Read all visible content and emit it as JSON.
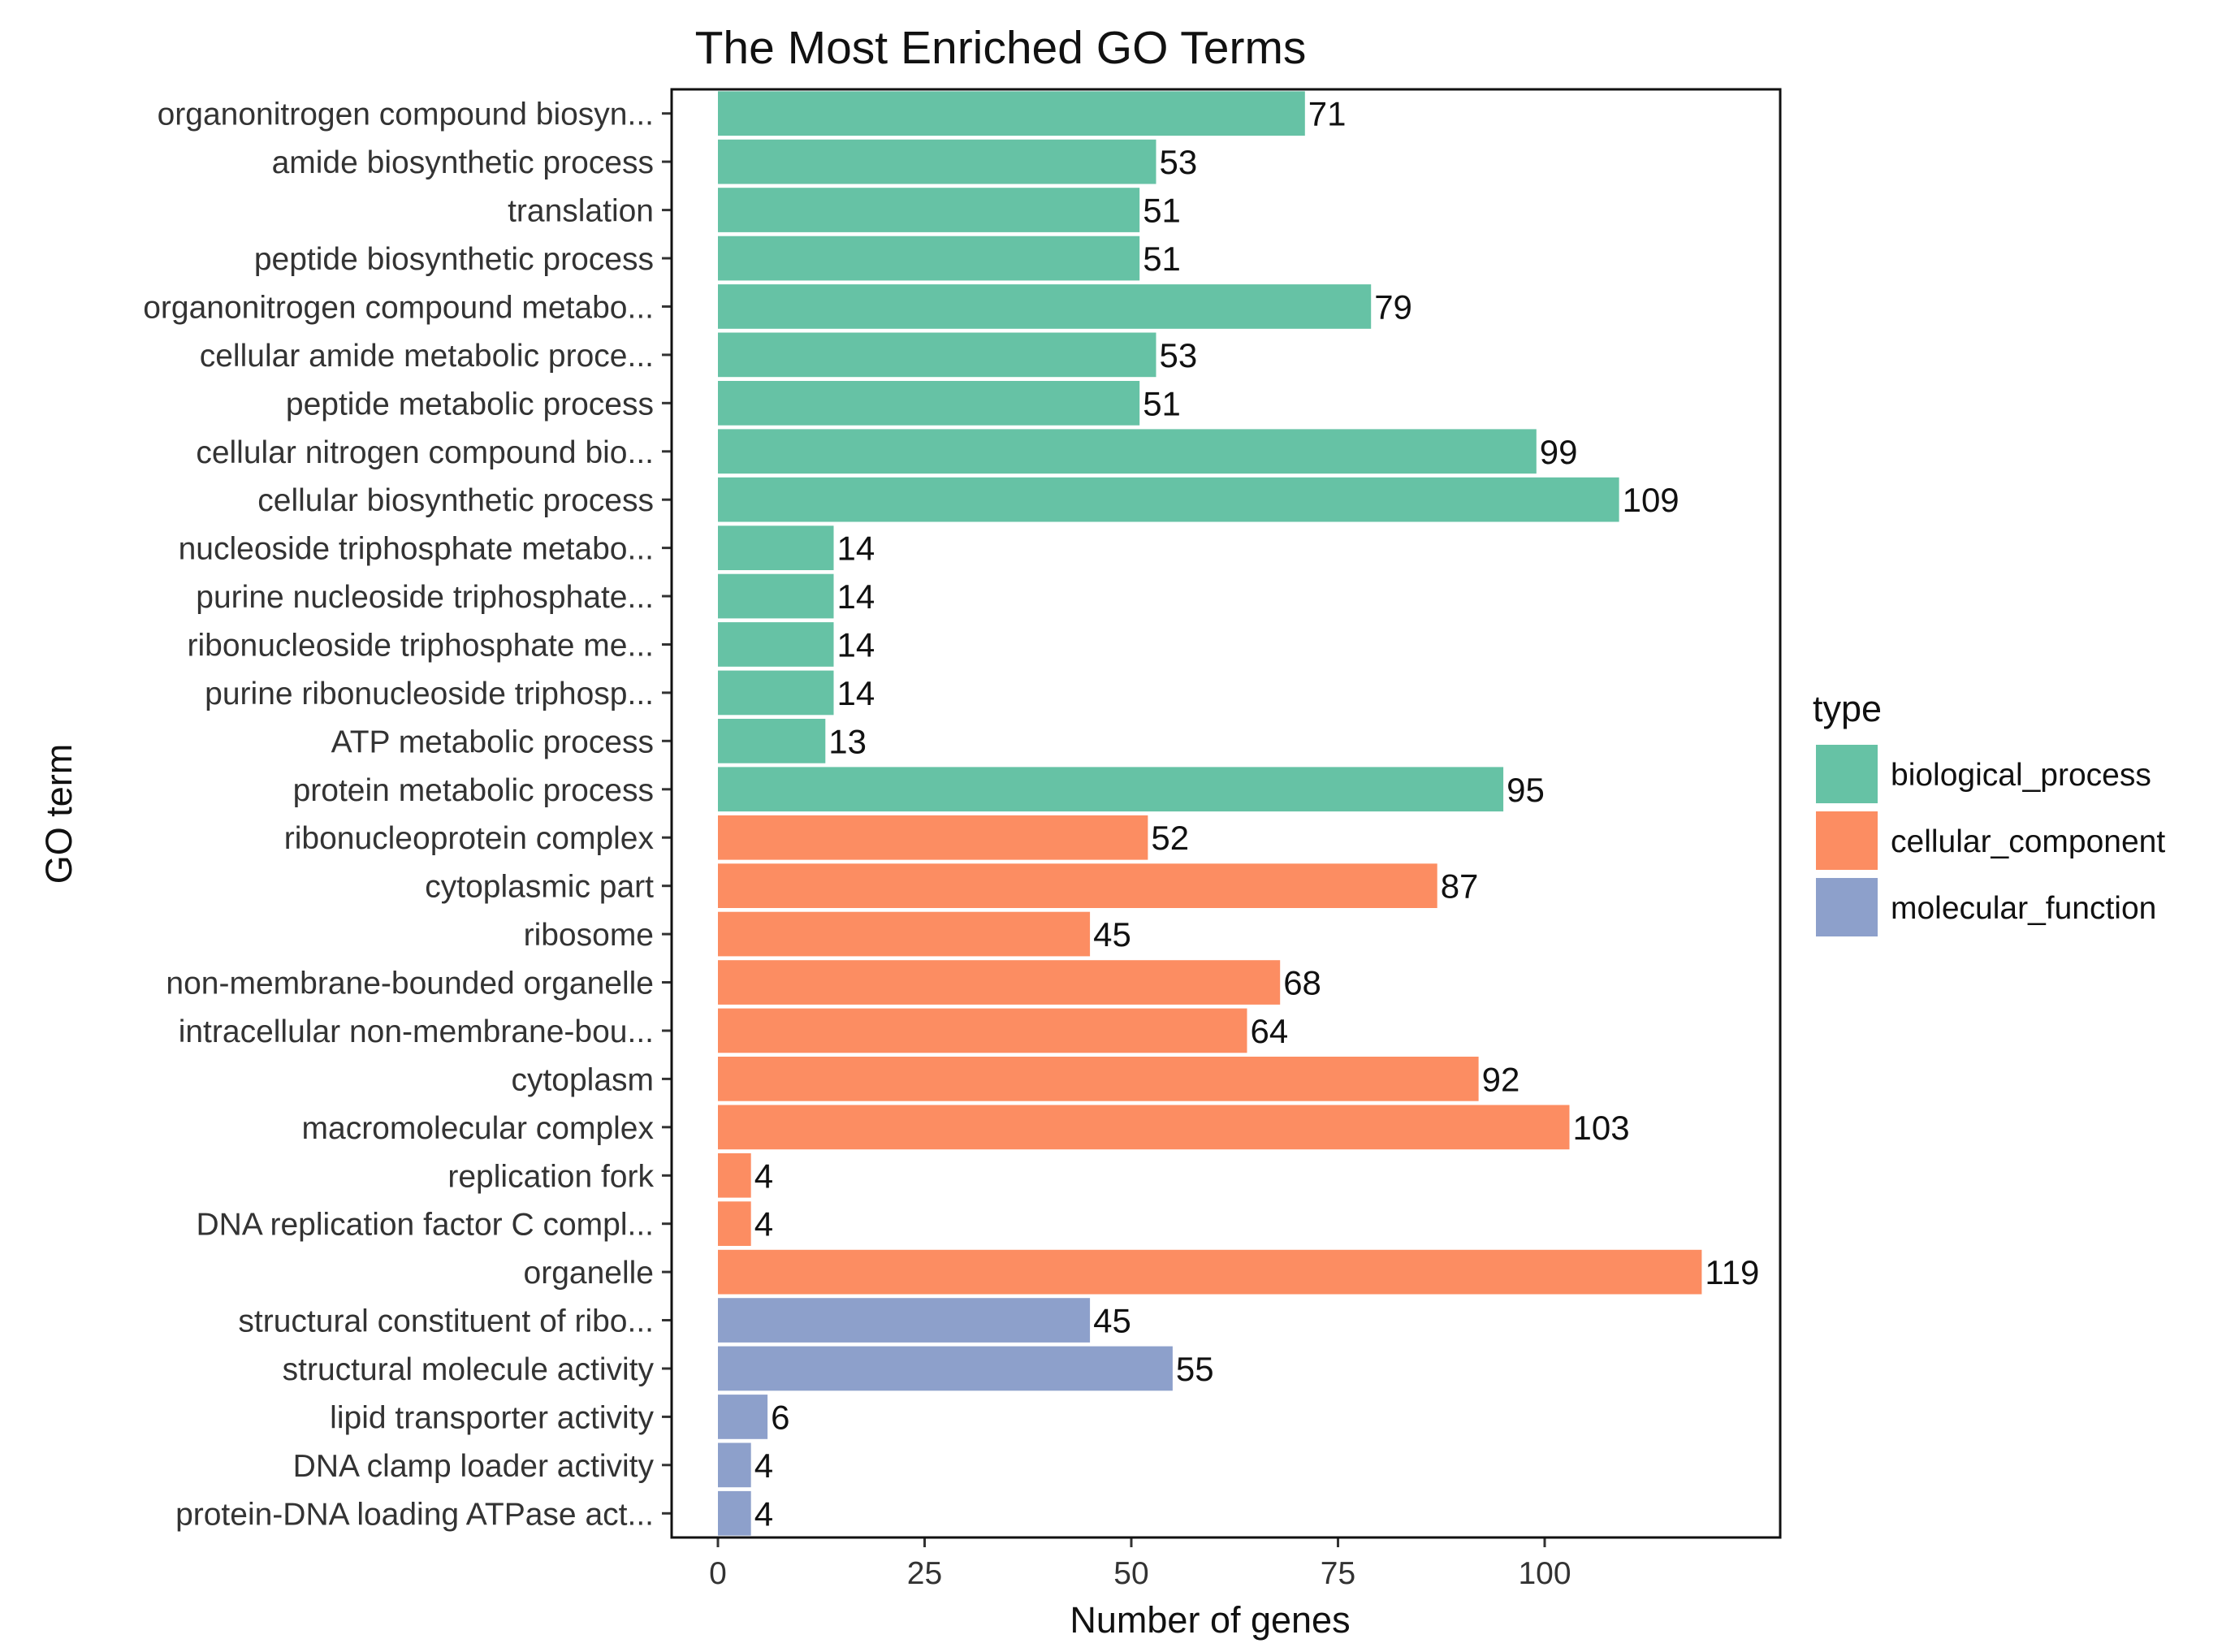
{
  "chart_data": {
    "type": "bar",
    "orientation": "horizontal",
    "title": "The Most Enriched GO Terms",
    "xlabel": "Number of genes",
    "ylabel": "GO term",
    "xlim": [
      0,
      128.5
    ],
    "xticks": [
      0,
      25,
      50,
      75,
      100
    ],
    "xtick_labels": [
      "0",
      "25",
      "50",
      "75",
      "100"
    ],
    "grid": false,
    "legend": {
      "title": "type",
      "placement": "right",
      "entries": [
        {
          "label": "biological_process",
          "color": "#66C2A5"
        },
        {
          "label": "cellular_component",
          "color": "#FC8D62"
        },
        {
          "label": "molecular_function",
          "color": "#8DA0CB"
        }
      ]
    },
    "categories": [
      "organonitrogen compound biosyn...",
      "amide biosynthetic process",
      "translation",
      "peptide biosynthetic process",
      "organonitrogen compound metabo...",
      "cellular amide metabolic proce...",
      "peptide metabolic process",
      "cellular nitrogen compound bio...",
      "cellular biosynthetic process",
      "nucleoside triphosphate metabo...",
      "purine nucleoside triphosphate...",
      "ribonucleoside triphosphate me...",
      "purine ribonucleoside triphosp...",
      "ATP metabolic process",
      "protein metabolic process",
      "ribonucleoprotein complex",
      "cytoplasmic part",
      "ribosome",
      "non-membrane-bounded organelle",
      "intracellular non-membrane-bou...",
      "cytoplasm",
      "macromolecular complex",
      "replication fork",
      "DNA replication factor C compl...",
      "organelle",
      "structural constituent of ribo...",
      "structural molecule activity",
      "lipid transporter activity",
      "DNA clamp loader activity",
      "protein-DNA loading ATPase act..."
    ],
    "values": [
      71,
      53,
      51,
      51,
      79,
      53,
      51,
      99,
      109,
      14,
      14,
      14,
      14,
      13,
      95,
      52,
      87,
      45,
      68,
      64,
      92,
      103,
      4,
      4,
      119,
      45,
      55,
      6,
      4,
      4
    ],
    "value_labels": [
      "71",
      "53",
      "51",
      "51",
      "79",
      "53",
      "51",
      "99",
      "109",
      "14",
      "14",
      "14",
      "14",
      "13",
      "95",
      "52",
      "87",
      "45",
      "68",
      "64",
      "92",
      "103",
      "4",
      "4",
      "119",
      "45",
      "55",
      "6",
      "4",
      "4"
    ],
    "types": [
      "biological_process",
      "biological_process",
      "biological_process",
      "biological_process",
      "biological_process",
      "biological_process",
      "biological_process",
      "biological_process",
      "biological_process",
      "biological_process",
      "biological_process",
      "biological_process",
      "biological_process",
      "biological_process",
      "biological_process",
      "cellular_component",
      "cellular_component",
      "cellular_component",
      "cellular_component",
      "cellular_component",
      "cellular_component",
      "cellular_component",
      "cellular_component",
      "cellular_component",
      "cellular_component",
      "molecular_function",
      "molecular_function",
      "molecular_function",
      "molecular_function",
      "molecular_function"
    ]
  }
}
